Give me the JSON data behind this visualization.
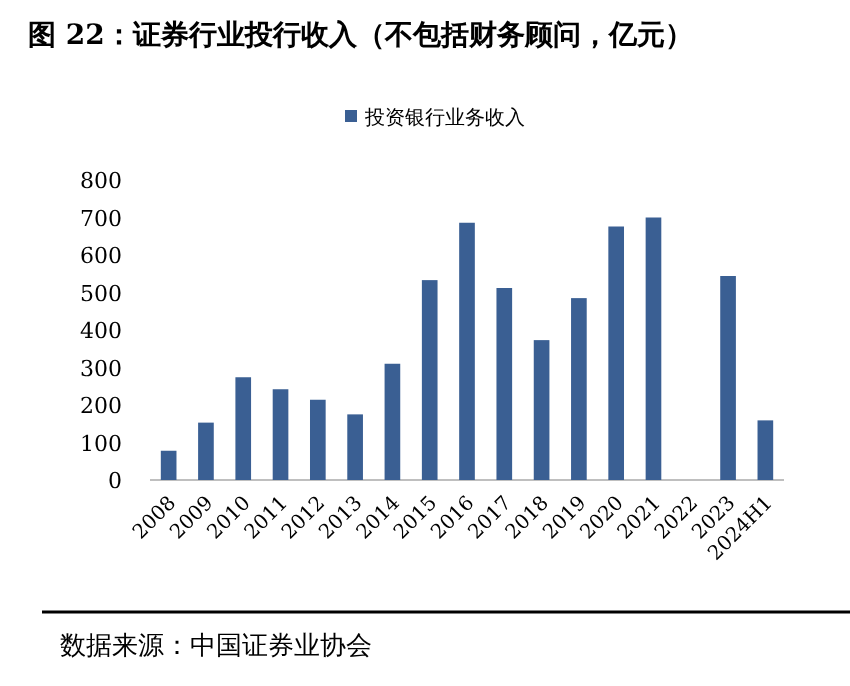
{
  "chart_data": {
    "type": "bar",
    "title": "图 22：证券行业投行收入（不包括财务顾问，亿元）",
    "categories": [
      "2008",
      "2009",
      "2010",
      "2011",
      "2012",
      "2013",
      "2014",
      "2015",
      "2016",
      "2017",
      "2018",
      "2019",
      "2020",
      "2021",
      "2022",
      "2023",
      "2024H1"
    ],
    "series": [
      {
        "name": "投资银行业务收入",
        "color": "#3a5f93",
        "values": [
          78,
          153,
          274,
          242,
          214,
          175,
          310,
          533,
          686,
          512,
          373,
          485,
          676,
          700,
          null,
          544,
          159
        ]
      }
    ],
    "ylim": [
      0,
      800
    ],
    "yticks": [
      0,
      100,
      200,
      300,
      400,
      500,
      600,
      700,
      800
    ],
    "grid": false,
    "legend": "top",
    "annotations": [
      "数据来源：中国证券业协会"
    ]
  }
}
